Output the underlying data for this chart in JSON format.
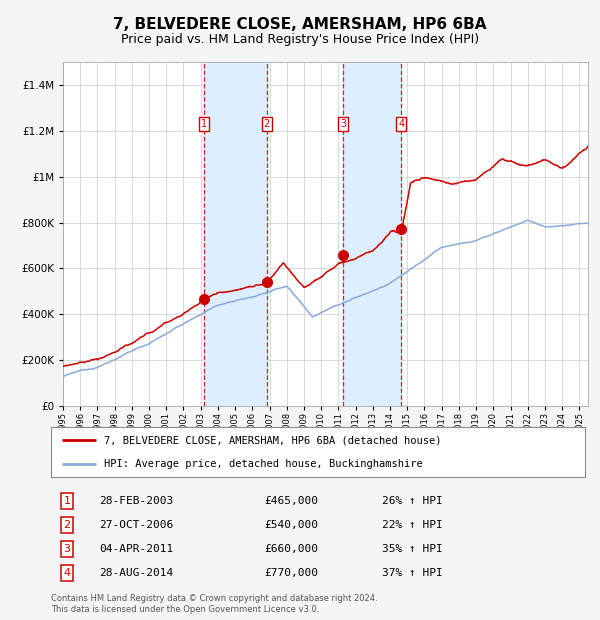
{
  "title": "7, BELVEDERE CLOSE, AMERSHAM, HP6 6BA",
  "subtitle": "Price paid vs. HM Land Registry's House Price Index (HPI)",
  "footer": "Contains HM Land Registry data © Crown copyright and database right 2024.\nThis data is licensed under the Open Government Licence v3.0.",
  "legend_line1": "7, BELVEDERE CLOSE, AMERSHAM, HP6 6BA (detached house)",
  "legend_line2": "HPI: Average price, detached house, Buckinghamshire",
  "transactions": [
    {
      "num": 1,
      "date": "28-FEB-2003",
      "price": 465000,
      "hpi_change": "26%",
      "year": 2003.17
    },
    {
      "num": 2,
      "date": "27-OCT-2006",
      "price": 540000,
      "hpi_change": "22%",
      "year": 2006.83
    },
    {
      "num": 3,
      "date": "04-APR-2011",
      "price": 660000,
      "hpi_change": "35%",
      "year": 2011.26
    },
    {
      "num": 4,
      "date": "28-AUG-2014",
      "price": 770000,
      "hpi_change": "37%",
      "year": 2014.66
    }
  ],
  "ylim": [
    0,
    1500000
  ],
  "xlim_start": 1995.0,
  "xlim_end": 2025.5,
  "background_color": "#f5f5f5",
  "chart_bg": "#ffffff",
  "grid_color": "#cccccc",
  "red_line_color": "#cc0000",
  "blue_line_color": "#88aadd",
  "highlight_color": "#ddeeff",
  "dashed_color": "#cc0000",
  "marker_color": "#cc0000",
  "title_fontsize": 11,
  "subtitle_fontsize": 9
}
